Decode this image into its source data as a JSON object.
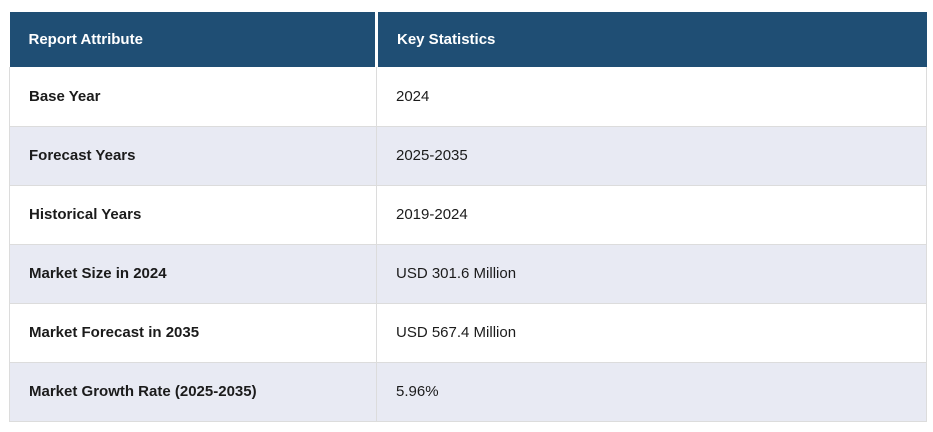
{
  "table": {
    "header": {
      "attribute_label": "Report Attribute",
      "statistics_label": "Key Statistics"
    },
    "rows": [
      {
        "attribute": "Base Year",
        "value": "2024"
      },
      {
        "attribute": "Forecast Years",
        "value": "2025-2035"
      },
      {
        "attribute": "Historical Years",
        "value": "2019-2024"
      },
      {
        "attribute": "Market Size in 2024",
        "value": "USD 301.6 Million"
      },
      {
        "attribute": "Market Forecast in 2035",
        "value": "USD 567.4 Million"
      },
      {
        "attribute": "Market Growth Rate (2025-2035)",
        "value": "5.96%"
      }
    ],
    "colors": {
      "header_bg": "#1F4E74",
      "header_text": "#FFFFFF",
      "row_stripe_bg": "#E8EAF3",
      "row_bg": "#FFFFFF",
      "border": "#DCDCDC",
      "body_text": "#1B1B1B"
    }
  }
}
